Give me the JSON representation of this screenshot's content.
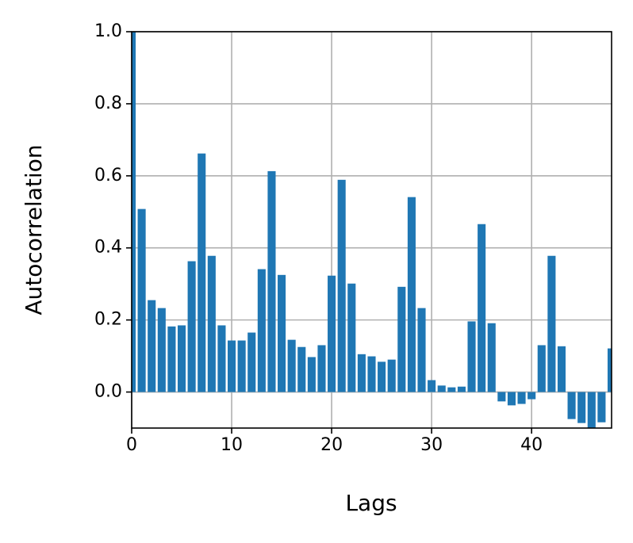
{
  "chart_data": {
    "type": "bar",
    "xlabel": "Lags",
    "ylabel": "Autocorrelation",
    "x": [
      0,
      1,
      2,
      3,
      4,
      5,
      6,
      7,
      8,
      9,
      10,
      11,
      12,
      13,
      14,
      15,
      16,
      17,
      18,
      19,
      20,
      21,
      22,
      23,
      24,
      25,
      26,
      27,
      28,
      29,
      30,
      31,
      32,
      33,
      34,
      35,
      36,
      37,
      38,
      39,
      40,
      41,
      42,
      43,
      44,
      45,
      46,
      47,
      48
    ],
    "values": [
      1.0,
      0.508,
      0.255,
      0.233,
      0.182,
      0.185,
      0.363,
      0.662,
      0.378,
      0.185,
      0.143,
      0.143,
      0.165,
      0.341,
      0.613,
      0.325,
      0.145,
      0.125,
      0.097,
      0.13,
      0.323,
      0.589,
      0.301,
      0.105,
      0.099,
      0.084,
      0.09,
      0.292,
      0.541,
      0.233,
      0.033,
      0.018,
      0.013,
      0.015,
      0.196,
      0.466,
      0.191,
      -0.026,
      -0.037,
      -0.033,
      -0.02,
      0.13,
      0.378,
      0.127,
      -0.075,
      -0.086,
      -0.1,
      -0.084,
      0.121
    ],
    "color": "#1f77b4",
    "xlim": [
      0,
      48
    ],
    "ylim": [
      -0.1,
      1.0
    ],
    "xticks": [
      0,
      10,
      20,
      30,
      40
    ],
    "yticks": [
      {
        "value": 0,
        "label": "0.0"
      },
      0.2,
      0.4,
      0.6,
      0.8,
      {
        "value": 1,
        "label": "1.0"
      }
    ],
    "grid": true
  }
}
